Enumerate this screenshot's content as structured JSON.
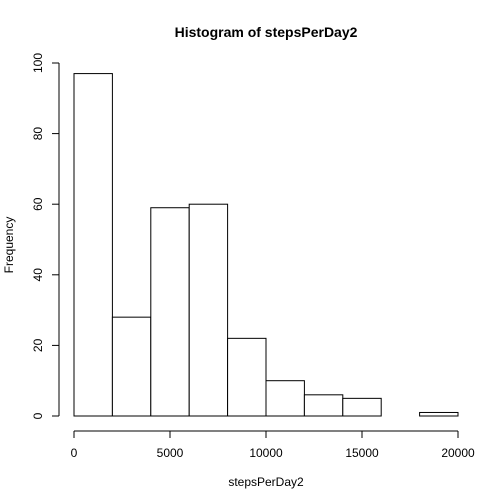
{
  "chart_data": {
    "type": "bar",
    "title": "Histogram of stepsPerDay2",
    "xlabel": "stepsPerDay2",
    "ylabel": "Frequency",
    "bins": [
      {
        "start": 0,
        "end": 2000,
        "value": 97
      },
      {
        "start": 2000,
        "end": 4000,
        "value": 28
      },
      {
        "start": 4000,
        "end": 6000,
        "value": 59
      },
      {
        "start": 6000,
        "end": 8000,
        "value": 60
      },
      {
        "start": 8000,
        "end": 10000,
        "value": 22
      },
      {
        "start": 10000,
        "end": 12000,
        "value": 10
      },
      {
        "start": 12000,
        "end": 14000,
        "value": 6
      },
      {
        "start": 14000,
        "end": 16000,
        "value": 5
      },
      {
        "start": 16000,
        "end": 18000,
        "value": 0
      },
      {
        "start": 18000,
        "end": 20000,
        "value": 1
      }
    ],
    "xlim": [
      0,
      20000
    ],
    "ylim": [
      0,
      100
    ],
    "x_ticks": [
      0,
      5000,
      10000,
      15000,
      20000
    ],
    "x_tick_labels": [
      "0",
      "5000",
      "10000",
      "15000",
      "20000"
    ],
    "y_ticks": [
      0,
      20,
      40,
      60,
      80,
      100
    ],
    "y_tick_labels": [
      "0",
      "20",
      "40",
      "60",
      "80",
      "100"
    ],
    "grid": false,
    "legend": "none",
    "bar_fill": "#ffffff",
    "bar_stroke": "#000000"
  }
}
